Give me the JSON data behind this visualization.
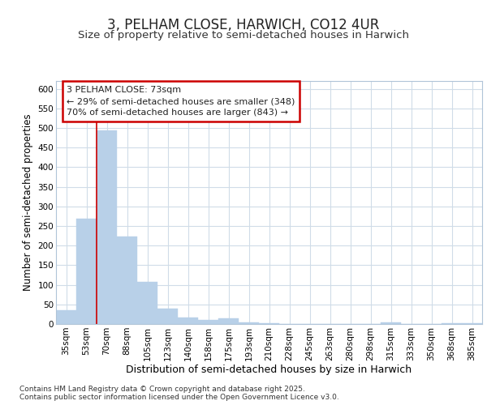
{
  "title": "3, PELHAM CLOSE, HARWICH, CO12 4UR",
  "subtitle": "Size of property relative to semi-detached houses in Harwich",
  "xlabel": "Distribution of semi-detached houses by size in Harwich",
  "ylabel": "Number of semi-detached properties",
  "categories": [
    "35sqm",
    "53sqm",
    "70sqm",
    "88sqm",
    "105sqm",
    "123sqm",
    "140sqm",
    "158sqm",
    "175sqm",
    "193sqm",
    "210sqm",
    "228sqm",
    "245sqm",
    "263sqm",
    "280sqm",
    "298sqm",
    "315sqm",
    "333sqm",
    "350sqm",
    "368sqm",
    "385sqm"
  ],
  "values": [
    35,
    268,
    493,
    223,
    108,
    40,
    17,
    10,
    15,
    5,
    3,
    1,
    1,
    0,
    0,
    0,
    4,
    0,
    0,
    3,
    3
  ],
  "bar_color": "#b8d0e8",
  "marker_line_index": 2,
  "marker_line_color": "#cc0000",
  "annotation_text": "3 PELHAM CLOSE: 73sqm\n← 29% of semi-detached houses are smaller (348)\n70% of semi-detached houses are larger (843) →",
  "annotation_box_edge_color": "#cc0000",
  "ylim": [
    0,
    620
  ],
  "yticks": [
    0,
    50,
    100,
    150,
    200,
    250,
    300,
    350,
    400,
    450,
    500,
    550,
    600
  ],
  "background_color": "#ffffff",
  "plot_background": "#ffffff",
  "grid_color": "#d0dce8",
  "footer_text": "Contains HM Land Registry data © Crown copyright and database right 2025.\nContains public sector information licensed under the Open Government Licence v3.0.",
  "title_fontsize": 12,
  "subtitle_fontsize": 9.5,
  "xlabel_fontsize": 9,
  "ylabel_fontsize": 8.5,
  "tick_fontsize": 7.5,
  "annotation_fontsize": 8,
  "footer_fontsize": 6.5
}
